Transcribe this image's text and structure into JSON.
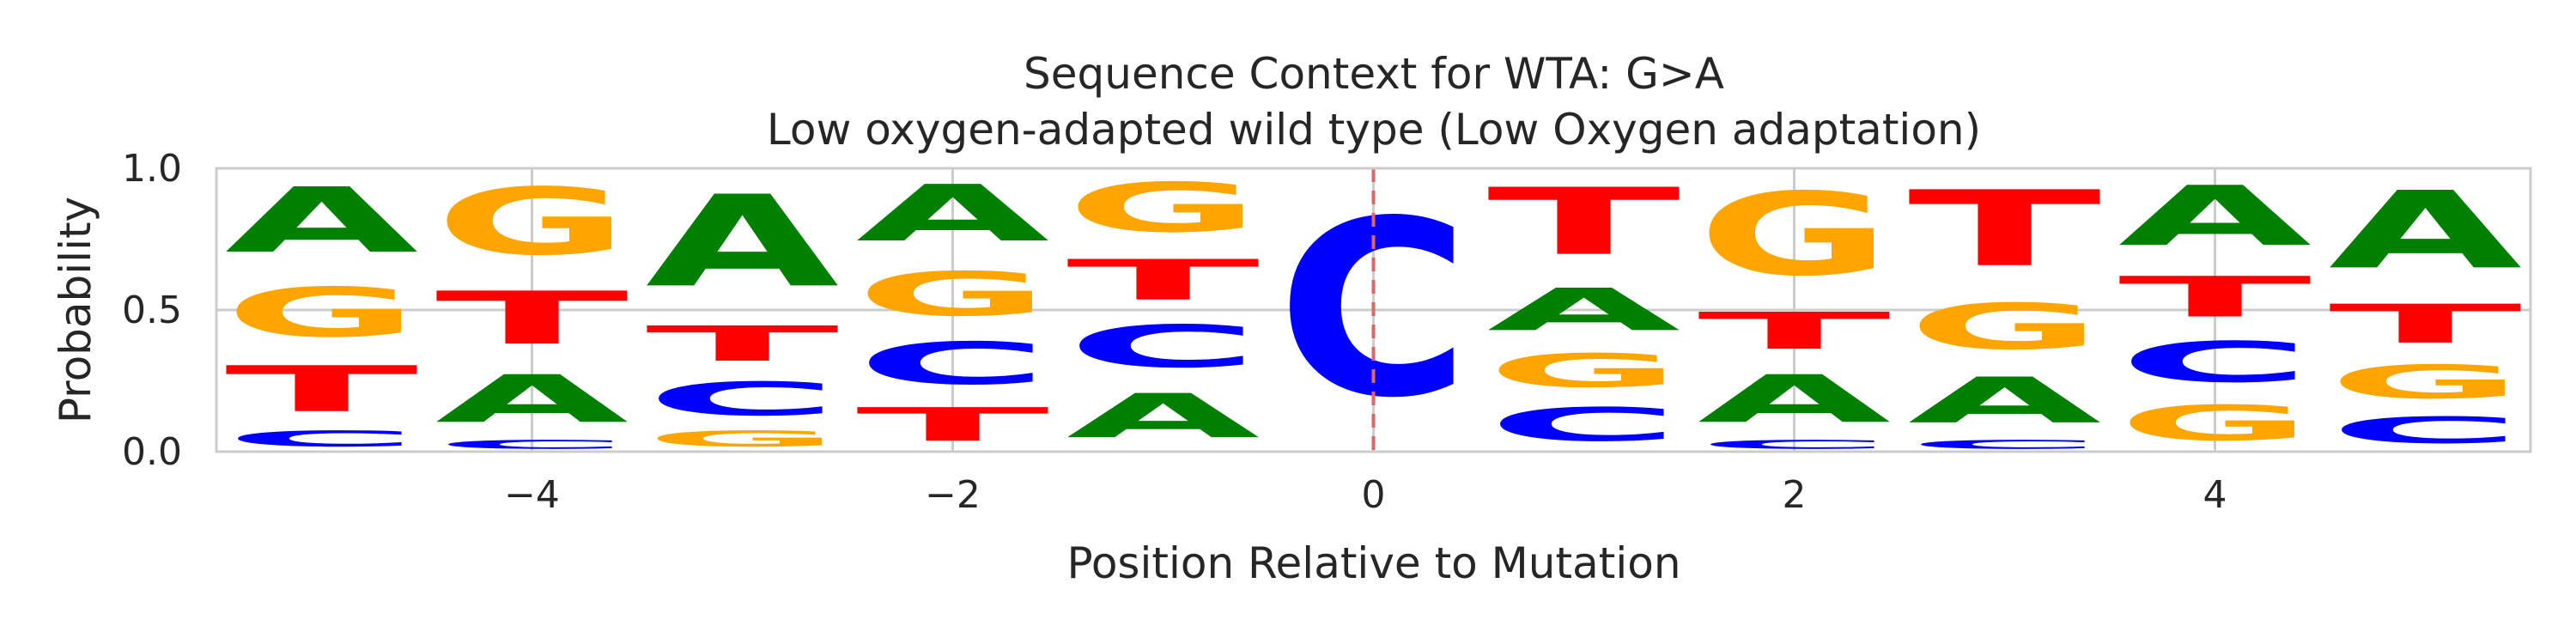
{
  "chart_data": {
    "type": "sequence_logo",
    "title": "Sequence Context for WTA: G>A",
    "subtitle": "Low oxygen-adapted wild type (Low Oxygen adaptation)",
    "xlabel": "Position Relative to Mutation",
    "ylabel": "Probability",
    "xlim": [
      -5.5,
      5.5
    ],
    "ylim": [
      0,
      1
    ],
    "x_ticks": [
      -4,
      -2,
      0,
      2,
      4
    ],
    "x_tick_labels": [
      "−4",
      "−2",
      "0",
      "2",
      "4"
    ],
    "y_ticks": [
      0,
      0.5,
      1
    ],
    "y_tick_labels": [
      "0.0",
      "0.5",
      "1.0"
    ],
    "grid": true,
    "mutation_marker": {
      "x": 0,
      "color": "#e06666",
      "style": "dashed"
    },
    "base_colors": {
      "A": "#008000",
      "C": "#0000ff",
      "G": "#ffa500",
      "T": "#ff0000"
    },
    "positions": [
      {
        "x": -5,
        "stack": [
          {
            "base": "C",
            "p": 0.09
          },
          {
            "base": "T",
            "p": 0.26
          },
          {
            "base": "G",
            "p": 0.28
          },
          {
            "base": "A",
            "p": 0.37
          }
        ]
      },
      {
        "x": -4,
        "stack": [
          {
            "base": "C",
            "p": 0.05
          },
          {
            "base": "A",
            "p": 0.27
          },
          {
            "base": "T",
            "p": 0.3
          },
          {
            "base": "G",
            "p": 0.38
          }
        ]
      },
      {
        "x": -3,
        "stack": [
          {
            "base": "G",
            "p": 0.09
          },
          {
            "base": "C",
            "p": 0.19
          },
          {
            "base": "T",
            "p": 0.2
          },
          {
            "base": "A",
            "p": 0.52
          }
        ]
      },
      {
        "x": -2,
        "stack": [
          {
            "base": "T",
            "p": 0.19
          },
          {
            "base": "C",
            "p": 0.24
          },
          {
            "base": "G",
            "p": 0.25
          },
          {
            "base": "A",
            "p": 0.32
          }
        ]
      },
      {
        "x": -1,
        "stack": [
          {
            "base": "A",
            "p": 0.25
          },
          {
            "base": "C",
            "p": 0.24
          },
          {
            "base": "T",
            "p": 0.23
          },
          {
            "base": "G",
            "p": 0.28
          }
        ]
      },
      {
        "x": 0,
        "stack": [
          {
            "base": "C",
            "p": 1.0
          }
        ]
      },
      {
        "x": 1,
        "stack": [
          {
            "base": "C",
            "p": 0.19
          },
          {
            "base": "G",
            "p": 0.19
          },
          {
            "base": "A",
            "p": 0.24
          },
          {
            "base": "T",
            "p": 0.38
          }
        ]
      },
      {
        "x": 2,
        "stack": [
          {
            "base": "C",
            "p": 0.05
          },
          {
            "base": "A",
            "p": 0.27
          },
          {
            "base": "T",
            "p": 0.21
          },
          {
            "base": "G",
            "p": 0.47
          }
        ]
      },
      {
        "x": 3,
        "stack": [
          {
            "base": "C",
            "p": 0.05
          },
          {
            "base": "A",
            "p": 0.26
          },
          {
            "base": "G",
            "p": 0.26
          },
          {
            "base": "T",
            "p": 0.43
          }
        ]
      },
      {
        "x": 4,
        "stack": [
          {
            "base": "G",
            "p": 0.2
          },
          {
            "base": "C",
            "p": 0.23
          },
          {
            "base": "T",
            "p": 0.23
          },
          {
            "base": "A",
            "p": 0.34
          }
        ]
      },
      {
        "x": 5,
        "stack": [
          {
            "base": "C",
            "p": 0.15
          },
          {
            "base": "G",
            "p": 0.19
          },
          {
            "base": "T",
            "p": 0.22
          },
          {
            "base": "A",
            "p": 0.44
          }
        ]
      }
    ]
  }
}
